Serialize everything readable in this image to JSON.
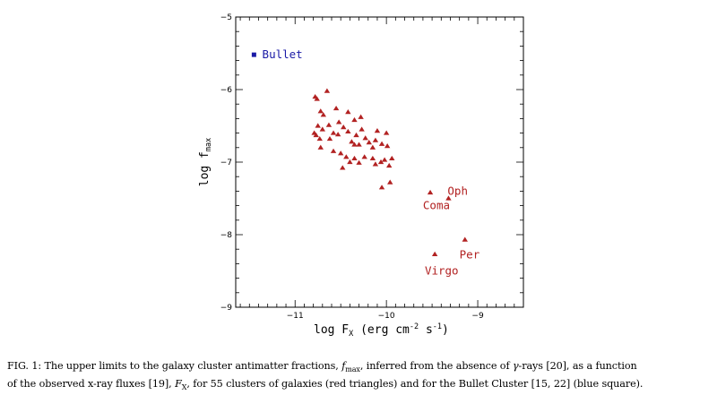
{
  "chart_data": {
    "type": "scatter",
    "xlabel": "log F",
    "xlabel_sub": "X",
    "xlabel_units": " (erg cm",
    "xlabel_exp1": "-2",
    "xlabel_mid": " s",
    "xlabel_exp2": "-1",
    "xlabel_close": ")",
    "ylabel": "log f",
    "ylabel_sub": "max",
    "xlim": [
      -11.65,
      -8.5
    ],
    "ylim": [
      -9,
      -5
    ],
    "xticks": [
      -11,
      -10,
      -9
    ],
    "xtick_labels": [
      "−11",
      "−10",
      "−9"
    ],
    "yticks": [
      -9,
      -8,
      -7,
      -6,
      -5
    ],
    "ytick_labels": [
      "−9",
      "−8",
      "−7",
      "−6",
      "−5"
    ],
    "series": [
      {
        "name": "galaxy clusters",
        "marker": "triangle",
        "color": "#b22222",
        "points": [
          {
            "x": -10.78,
            "y": -6.1
          },
          {
            "x": -10.76,
            "y": -6.13
          },
          {
            "x": -10.65,
            "y": -6.02
          },
          {
            "x": -10.55,
            "y": -6.26
          },
          {
            "x": -10.72,
            "y": -6.3
          },
          {
            "x": -10.69,
            "y": -6.35
          },
          {
            "x": -10.42,
            "y": -6.31
          },
          {
            "x": -10.35,
            "y": -6.42
          },
          {
            "x": -10.28,
            "y": -6.38
          },
          {
            "x": -10.52,
            "y": -6.45
          },
          {
            "x": -10.63,
            "y": -6.49
          },
          {
            "x": -10.75,
            "y": -6.5
          },
          {
            "x": -10.7,
            "y": -6.55
          },
          {
            "x": -10.79,
            "y": -6.6
          },
          {
            "x": -10.58,
            "y": -6.6
          },
          {
            "x": -10.47,
            "y": -6.52
          },
          {
            "x": -10.42,
            "y": -6.58
          },
          {
            "x": -10.53,
            "y": -6.62
          },
          {
            "x": -10.62,
            "y": -6.68
          },
          {
            "x": -10.73,
            "y": -6.68
          },
          {
            "x": -10.77,
            "y": -6.63
          },
          {
            "x": -10.38,
            "y": -6.72
          },
          {
            "x": -10.33,
            "y": -6.63
          },
          {
            "x": -10.27,
            "y": -6.55
          },
          {
            "x": -10.23,
            "y": -6.67
          },
          {
            "x": -10.19,
            "y": -6.73
          },
          {
            "x": -10.12,
            "y": -6.7
          },
          {
            "x": -10.05,
            "y": -6.75
          },
          {
            "x": -10.15,
            "y": -6.8
          },
          {
            "x": -10.3,
            "y": -6.76
          },
          {
            "x": -10.35,
            "y": -6.76
          },
          {
            "x": -10.72,
            "y": -6.8
          },
          {
            "x": -10.58,
            "y": -6.85
          },
          {
            "x": -10.5,
            "y": -6.88
          },
          {
            "x": -10.44,
            "y": -6.93
          },
          {
            "x": -10.35,
            "y": -6.95
          },
          {
            "x": -10.24,
            "y": -6.93
          },
          {
            "x": -10.15,
            "y": -6.95
          },
          {
            "x": -10.4,
            "y": -7.0
          },
          {
            "x": -10.02,
            "y": -6.97
          },
          {
            "x": -10.06,
            "y": -7.0
          },
          {
            "x": -10.48,
            "y": -7.08
          },
          {
            "x": -10.12,
            "y": -7.03
          },
          {
            "x": -10.0,
            "y": -6.6
          },
          {
            "x": -9.99,
            "y": -6.78
          },
          {
            "x": -9.97,
            "y": -7.05
          },
          {
            "x": -10.3,
            "y": -7.01
          },
          {
            "x": -10.1,
            "y": -6.57
          },
          {
            "x": -9.96,
            "y": -7.28
          },
          {
            "x": -10.05,
            "y": -7.35
          },
          {
            "x": -9.94,
            "y": -6.95
          },
          {
            "x": -9.52,
            "y": -7.42
          },
          {
            "x": -9.32,
            "y": -7.5
          },
          {
            "x": -9.47,
            "y": -8.27
          },
          {
            "x": -9.14,
            "y": -8.07
          }
        ]
      },
      {
        "name": "Bullet Cluster",
        "marker": "square",
        "color": "#1a1aa6",
        "points": [
          {
            "x": -11.45,
            "y": -5.52
          }
        ]
      }
    ],
    "annotations": [
      {
        "text": "Bullet",
        "x": -11.36,
        "y": -5.52,
        "color": "#1a1aa6"
      },
      {
        "text": "Oph",
        "x": -9.33,
        "y": -7.4,
        "color": "#b22222"
      },
      {
        "text": "Coma",
        "x": -9.6,
        "y": -7.6,
        "color": "#b22222"
      },
      {
        "text": "Per",
        "x": -9.2,
        "y": -8.28,
        "color": "#b22222"
      },
      {
        "text": "Virgo",
        "x": -9.58,
        "y": -8.5,
        "color": "#b22222"
      }
    ]
  },
  "caption": {
    "line1_prefix": "FIG. 1:   The upper limits to the galaxy cluster antimatter fractions, ",
    "line1_f": "f",
    "line1_fsub": "max",
    "line1_mid": ", inferred from the absence of ",
    "line1_gamma": "γ",
    "line1_suffix": "-rays [20], as a function",
    "line2_prefix": "of the observed x-ray fluxes [19], ",
    "line2_F": "F",
    "line2_Fsub": "X",
    "line2_suffix": ", for 55 clusters of galaxies (red triangles) and for the Bullet Cluster [15, 22] (blue square)."
  }
}
